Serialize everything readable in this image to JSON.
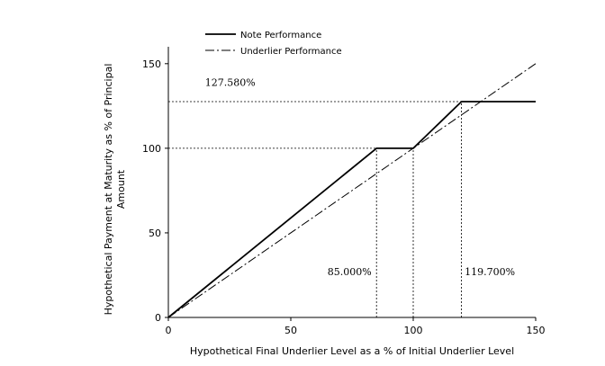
{
  "chart_data": {
    "type": "line",
    "xlabel": "Hypothetical Final Underlier Level as a % of Initial Underlier Level",
    "ylabel_lines": [
      "Hypothetical Payment at Maturity as % of Principal",
      "Amount"
    ],
    "xlim": [
      0,
      150
    ],
    "ylim": [
      0,
      160
    ],
    "x_ticks": [
      0,
      50,
      100,
      150
    ],
    "y_ticks": [
      0,
      50,
      100,
      150
    ],
    "grid": false,
    "legend_position": "top-left",
    "series": [
      {
        "name": "Note Performance",
        "style": "solid",
        "color": "#000000",
        "x": [
          0,
          85,
          100,
          119.7,
          150
        ],
        "y": [
          0,
          100,
          100,
          127.58,
          127.58
        ]
      },
      {
        "name": "Underlier Performance",
        "style": "dashdot",
        "color": "#000000",
        "x": [
          0,
          150
        ],
        "y": [
          0,
          150
        ]
      }
    ],
    "reference_lines": [
      {
        "orientation": "horizontal",
        "value": 127.58,
        "x_from": 0,
        "x_to": 119.7
      },
      {
        "orientation": "horizontal",
        "value": 100,
        "x_from": 0,
        "x_to": 100
      },
      {
        "orientation": "vertical",
        "value": 85,
        "y_from": 0,
        "y_to": 100
      },
      {
        "orientation": "vertical",
        "value": 100,
        "y_from": 0,
        "y_to": 100
      },
      {
        "orientation": "vertical",
        "value": 119.7,
        "y_from": 0,
        "y_to": 127.58
      }
    ],
    "annotations": [
      {
        "text": "127.580%",
        "x": 15,
        "y": 137
      },
      {
        "text": "85.000%",
        "x": 65,
        "y": 25
      },
      {
        "text": "119.700%",
        "x": 121,
        "y": 25
      }
    ]
  }
}
